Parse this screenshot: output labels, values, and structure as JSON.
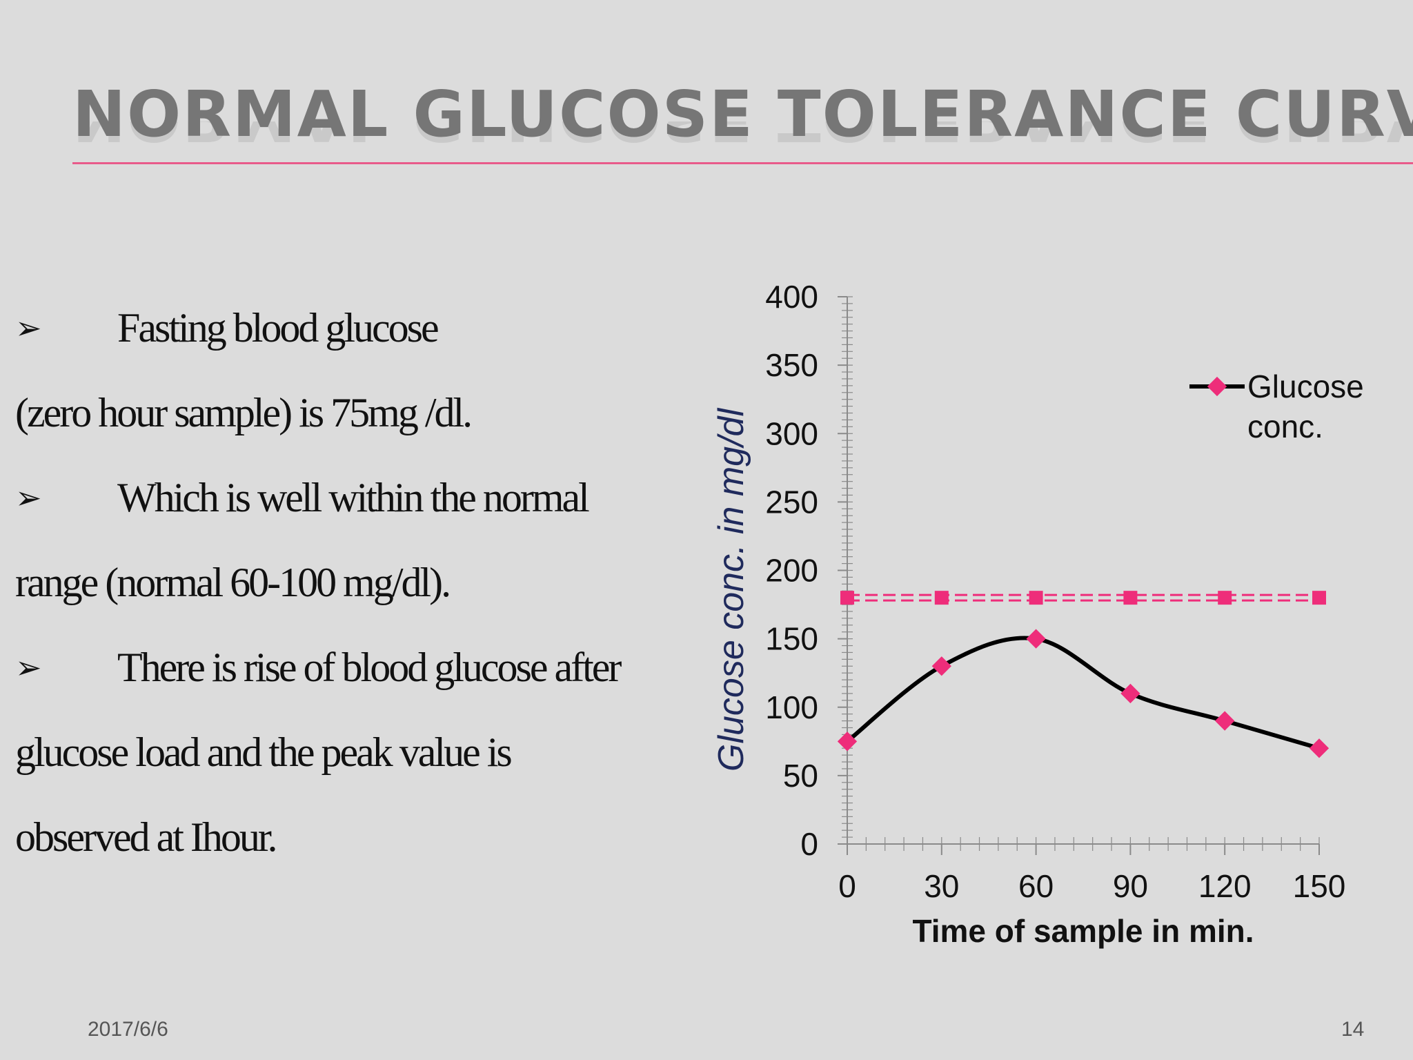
{
  "slide": {
    "title": "NORMAL GLUCOSE  TOLERANCE CURVE",
    "date": "2017/6/6",
    "page_number": "14"
  },
  "body": {
    "bullet_symbol": "➢",
    "lines": [
      "Fasting blood glucose",
      "(zero hour  sample) is 75mg /dl.",
      "Which is well within the normal",
      "range (normal 60-100 mg/dl).",
      "There is rise of blood glucose after",
      "glucose  load and the peak value is",
      "observed at Ihour."
    ]
  },
  "chart_data": {
    "type": "line",
    "xlabel": "Time of sample in min.",
    "ylabel": "Glucose conc. in mg/dl",
    "x": [
      0,
      30,
      60,
      90,
      120,
      150
    ],
    "xlim": [
      0,
      150
    ],
    "ylim": [
      0,
      400
    ],
    "x_ticks": [
      "0",
      "30",
      "60",
      "90",
      "120",
      "150"
    ],
    "y_ticks": [
      "0",
      "50",
      "100",
      "150",
      "200",
      "250",
      "300",
      "350",
      "400"
    ],
    "grid": false,
    "legend_position": "right",
    "series": [
      {
        "name": "Glucose conc.",
        "values": [
          75,
          130,
          150,
          110,
          90,
          70
        ],
        "line_color": "#000000",
        "marker": "diamond",
        "marker_color": "#ee2d7a",
        "smooth": true
      },
      {
        "values": [
          180,
          180,
          180,
          180,
          180,
          180
        ],
        "line_color": "#ee2d7a",
        "marker": "square",
        "marker_color": "#ee2d7a",
        "dashed": true
      }
    ]
  },
  "colors": {
    "background": "#dcdcdc",
    "title": "#767676",
    "accent": "#e85a8a",
    "ylabel": "#1f2a5c"
  }
}
